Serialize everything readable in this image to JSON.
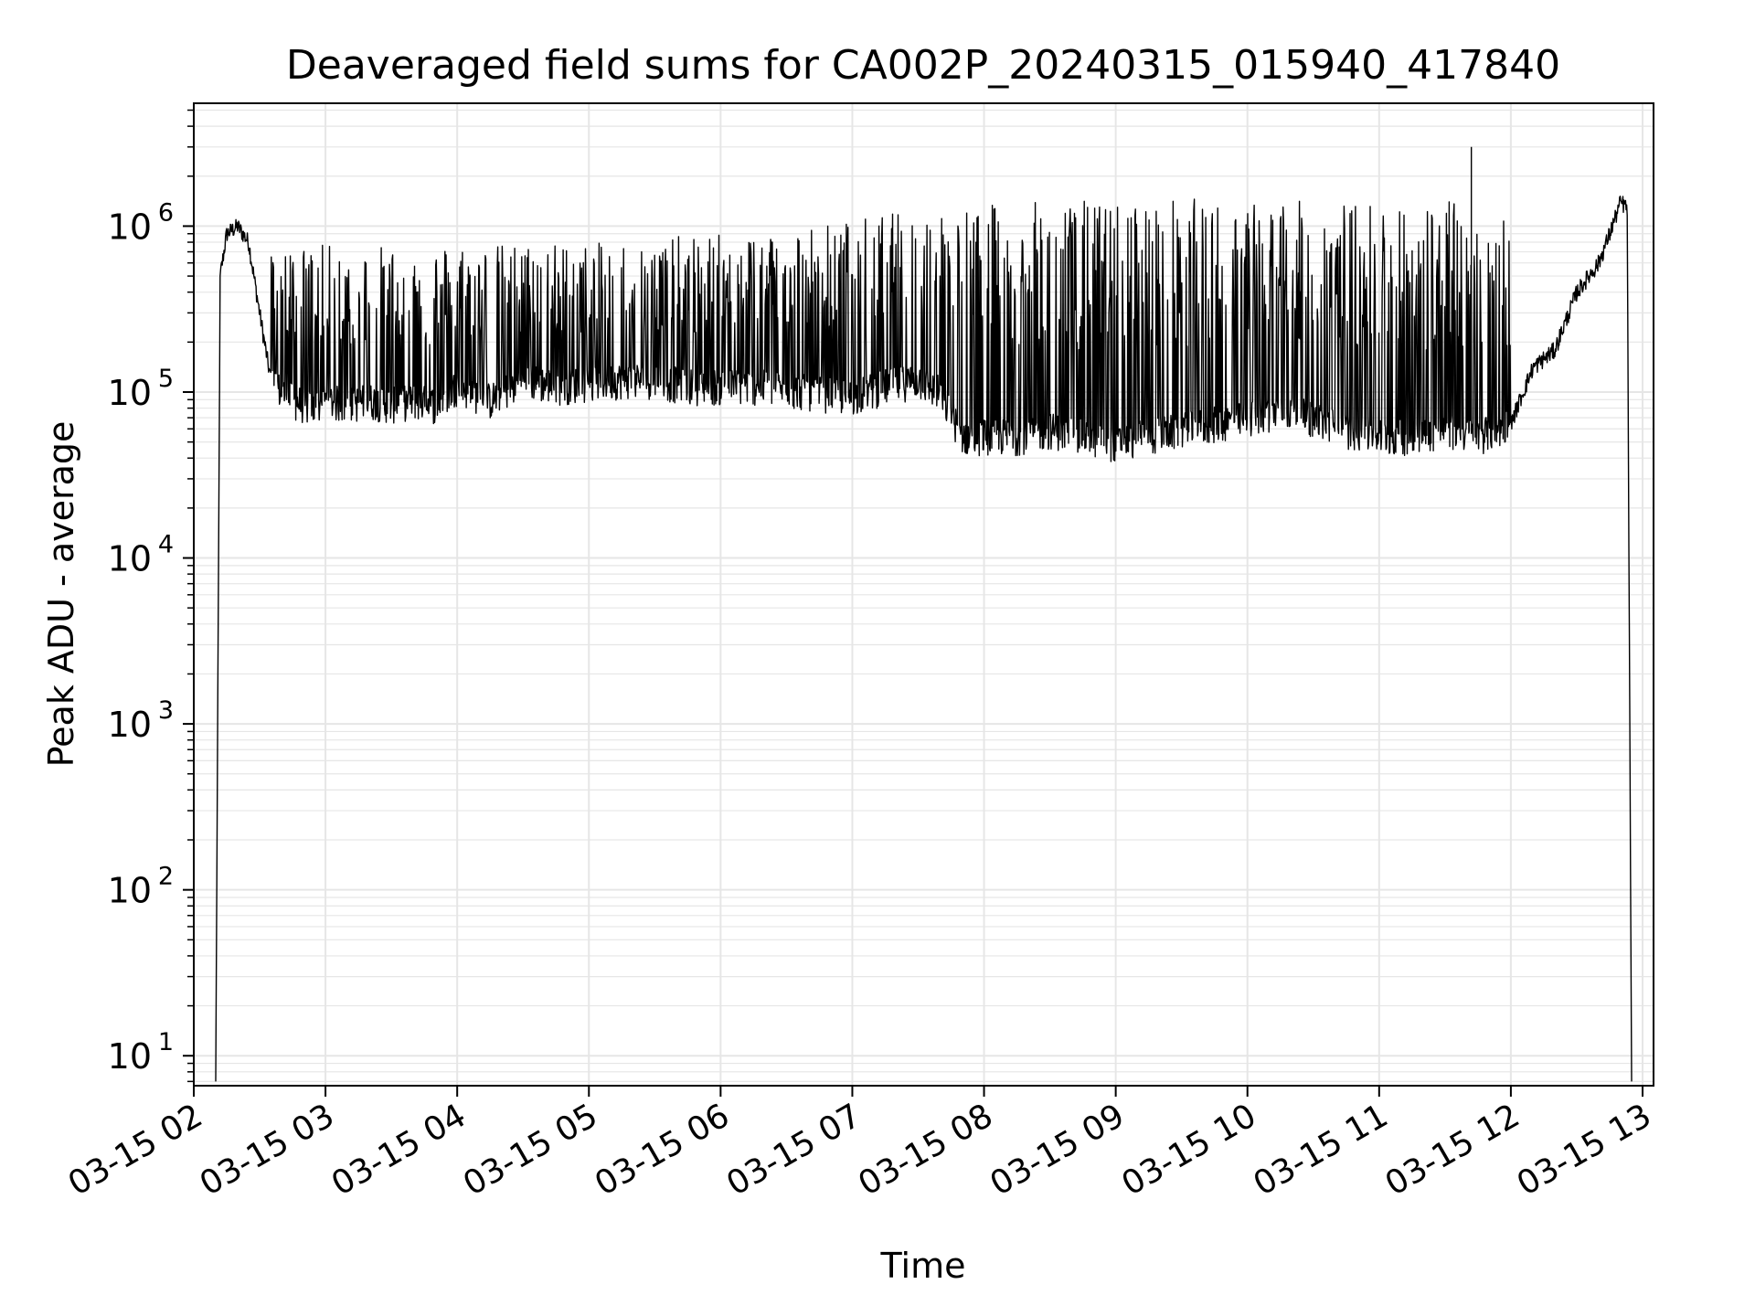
{
  "chart_data": {
    "type": "line",
    "title": "Deaveraged field sums for CA002P_20240315_015940_417840",
    "xlabel": "Time",
    "ylabel": "Peak ADU - average",
    "y_scale": "log",
    "grid": true,
    "line_color": "#000000",
    "grid_color": "#e6e6e6",
    "xlim": [
      "2024-03-15 02:00",
      "2024-03-15 13:05"
    ],
    "ylim": [
      6.6,
      5500000
    ],
    "x_ticks": [
      {
        "time": "2024-03-15 02:00",
        "label": "03-15 02"
      },
      {
        "time": "2024-03-15 03:00",
        "label": "03-15 03"
      },
      {
        "time": "2024-03-15 04:00",
        "label": "03-15 04"
      },
      {
        "time": "2024-03-15 05:00",
        "label": "03-15 05"
      },
      {
        "time": "2024-03-15 06:00",
        "label": "03-15 06"
      },
      {
        "time": "2024-03-15 07:00",
        "label": "03-15 07"
      },
      {
        "time": "2024-03-15 08:00",
        "label": "03-15 08"
      },
      {
        "time": "2024-03-15 09:00",
        "label": "03-15 09"
      },
      {
        "time": "2024-03-15 10:00",
        "label": "03-15 10"
      },
      {
        "time": "2024-03-15 11:00",
        "label": "03-15 11"
      },
      {
        "time": "2024-03-15 12:00",
        "label": "03-15 12"
      },
      {
        "time": "2024-03-15 13:00",
        "label": "03-15 13"
      }
    ],
    "y_ticks": [
      {
        "value": 10,
        "base": "10",
        "exp": "1"
      },
      {
        "value": 100,
        "base": "10",
        "exp": "2"
      },
      {
        "value": 1000,
        "base": "10",
        "exp": "3"
      },
      {
        "value": 10000,
        "base": "10",
        "exp": "4"
      },
      {
        "value": 100000,
        "base": "10",
        "exp": "5"
      },
      {
        "value": 1000000,
        "base": "10",
        "exp": "6"
      }
    ],
    "series": [
      {
        "x": [
          "2024-03-15 02:10",
          "2024-03-15 02:12",
          "2024-03-15 02:15",
          "2024-03-15 02:20",
          "2024-03-15 02:25",
          "2024-03-15 02:30",
          "2024-03-15 02:35",
          "2024-03-15 02:40",
          "2024-03-15 02:45",
          "2024-03-15 02:50",
          "2024-03-15 02:55",
          "2024-03-15 03:00",
          "2024-03-15 03:10",
          "2024-03-15 03:20",
          "2024-03-15 03:30",
          "2024-03-15 03:40",
          "2024-03-15 03:50",
          "2024-03-15 04:00",
          "2024-03-15 04:15",
          "2024-03-15 04:30",
          "2024-03-15 04:45",
          "2024-03-15 05:00",
          "2024-03-15 05:15",
          "2024-03-15 05:30",
          "2024-03-15 05:45",
          "2024-03-15 06:00",
          "2024-03-15 06:15",
          "2024-03-15 06:30",
          "2024-03-15 06:45",
          "2024-03-15 07:00",
          "2024-03-15 07:15",
          "2024-03-15 07:30",
          "2024-03-15 07:40",
          "2024-03-15 07:50",
          "2024-03-15 08:00",
          "2024-03-15 08:15",
          "2024-03-15 08:30",
          "2024-03-15 08:45",
          "2024-03-15 09:00",
          "2024-03-15 09:15",
          "2024-03-15 09:30",
          "2024-03-15 09:45",
          "2024-03-15 10:00",
          "2024-03-15 10:15",
          "2024-03-15 10:30",
          "2024-03-15 10:45",
          "2024-03-15 11:00",
          "2024-03-15 11:15",
          "2024-03-15 11:30",
          "2024-03-15 11:45",
          "2024-03-15 12:00",
          "2024-03-15 12:10",
          "2024-03-15 12:20",
          "2024-03-15 12:30",
          "2024-03-15 12:40",
          "2024-03-15 12:45",
          "2024-03-15 12:50",
          "2024-03-15 12:53",
          "2024-03-15 12:55"
        ],
        "y": [
          7,
          500000,
          900000,
          1000000,
          800000,
          300000,
          120000,
          100000,
          90000,
          85000,
          80000,
          90000,
          85000,
          90000,
          85000,
          90000,
          85000,
          110000,
          90000,
          120000,
          110000,
          115000,
          120000,
          120000,
          110000,
          110000,
          110000,
          105000,
          100000,
          95000,
          110000,
          120000,
          100000,
          55000,
          55000,
          55000,
          60000,
          55000,
          50000,
          55000,
          60000,
          65000,
          70000,
          80000,
          70000,
          60000,
          55000,
          55000,
          60000,
          55000,
          65000,
          140000,
          180000,
          400000,
          600000,
          900000,
          1400000,
          1300000,
          7
        ],
        "upper_envelope": [
          null,
          null,
          null,
          null,
          null,
          null,
          700000,
          750000,
          780000,
          750000,
          760000,
          780000,
          750000,
          760000,
          770000,
          780000,
          780000,
          800000,
          780000,
          790000,
          800000,
          780000,
          820000,
          840000,
          880000,
          900000,
          950000,
          1000000,
          1050000,
          1100000,
          1200000,
          1250000,
          1300000,
          1300000,
          1350000,
          1400000,
          1400000,
          1450000,
          1400000,
          1450000,
          1500000,
          1450000,
          1400000,
          1450000,
          1400000,
          1400000,
          1450000,
          1500000,
          1450000,
          1400000,
          null,
          null,
          null,
          null,
          null,
          null,
          null,
          null,
          null
        ],
        "peak": {
          "x": "2024-03-15 11:42",
          "y": 3000000
        }
      }
    ]
  }
}
